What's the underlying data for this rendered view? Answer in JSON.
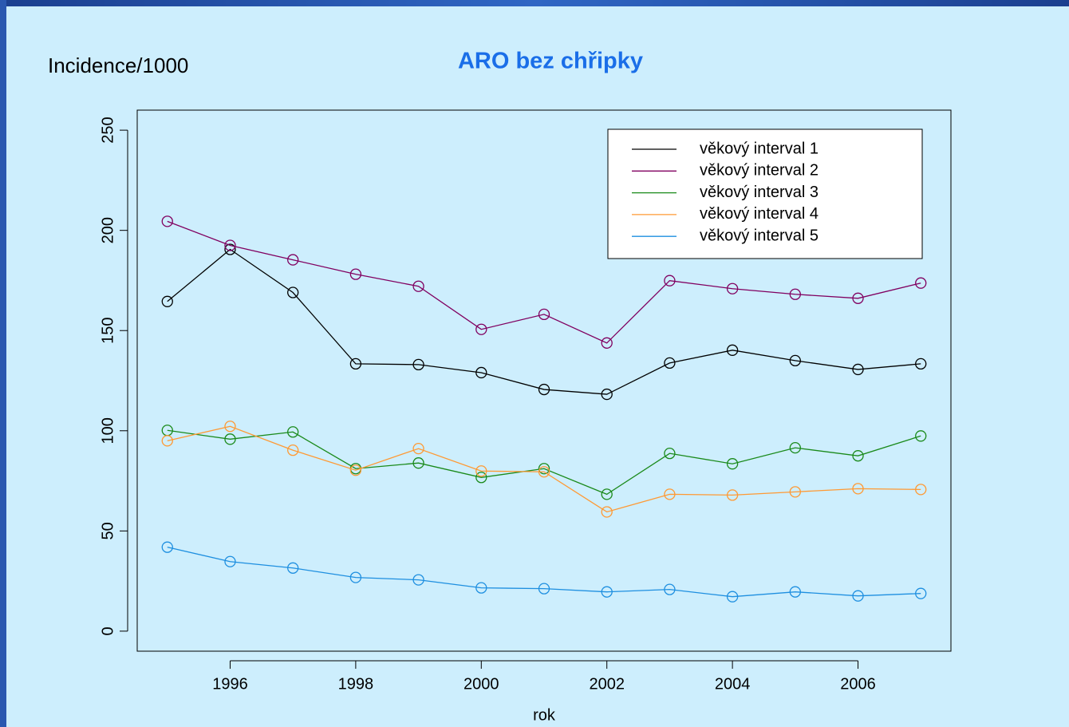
{
  "chart_data": {
    "type": "line",
    "title": "ARO bez chřipky",
    "y_label": "Incidence/1000",
    "x_label": "rok",
    "x": [
      1995,
      1996,
      1997,
      1998,
      1999,
      2000,
      2001,
      2002,
      2003,
      2004,
      2005,
      2006,
      2007
    ],
    "series": [
      {
        "name": "věkový interval 1",
        "color": "#000000",
        "values": [
          164.5,
          190.5,
          169,
          133.4,
          133,
          129,
          120.6,
          118.2,
          133.8,
          140.2,
          135,
          130.6,
          133.4
        ]
      },
      {
        "name": "věkový interval 2",
        "color": "#800060",
        "values": [
          204.5,
          192.5,
          185.3,
          178.1,
          172.1,
          150.6,
          158.1,
          143.8,
          174.9,
          170.9,
          168.1,
          166.1,
          173.7
        ]
      },
      {
        "name": "věkový interval 3",
        "color": "#1a8a1a",
        "values": [
          100.2,
          95.8,
          99.4,
          81.1,
          83.9,
          76.7,
          81.1,
          68.3,
          88.7,
          83.5,
          91.5,
          87.5,
          97.4
        ]
      },
      {
        "name": "věkový interval 4",
        "color": "#ff9933",
        "values": [
          95,
          102.2,
          90.3,
          80.3,
          91.1,
          79.9,
          79.5,
          59.5,
          68.3,
          67.9,
          69.5,
          71.1,
          70.7
        ]
      },
      {
        "name": "věkový interval 5",
        "color": "#1e8fe0",
        "values": [
          41.9,
          34.7,
          31.5,
          26.8,
          25.6,
          21.6,
          21.2,
          19.6,
          20.8,
          17.2,
          19.6,
          17.6,
          18.8
        ]
      }
    ],
    "xlim": [
      1994.52,
      2007.48
    ],
    "xticks": [
      1996,
      1998,
      2000,
      2002,
      2004,
      2006
    ],
    "ylim": [
      -10,
      260
    ],
    "yticks": [
      0,
      50,
      100,
      150,
      200,
      250
    ],
    "grid": false,
    "legend": "topright",
    "markers": "open-circle"
  }
}
